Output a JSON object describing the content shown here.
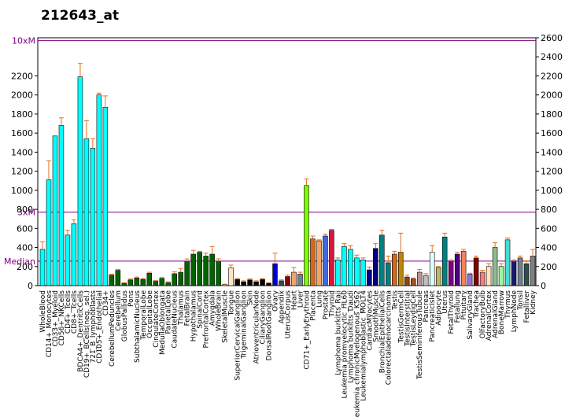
{
  "chart_data": {
    "type": "bar",
    "title": "212643_at",
    "xlabel": "",
    "ylabel": "",
    "ylim": [
      0,
      2600
    ],
    "left_ticks": [
      "0",
      "200",
      "400",
      "600",
      "800",
      "1000",
      "1200",
      "1400",
      "1600",
      "1800",
      "2000",
      "2200"
    ],
    "right_ticks": [
      "0",
      "200",
      "400",
      "600",
      "800",
      "1000",
      "1200",
      "1400",
      "1600",
      "1800",
      "2000",
      "2200",
      "2400",
      "2600"
    ],
    "reference_lines": [
      {
        "label": "10xM",
        "value": 2570,
        "color": "#800080"
      },
      {
        "label": "3xM",
        "value": 771,
        "color": "#800080"
      },
      {
        "label": "Median",
        "value": 257,
        "color": "#800080"
      }
    ],
    "categories": [
      "WholeBlood",
      "CD14+_Monocytes",
      "CD33+_Myeloid",
      "CD56+_NKCells",
      "CD4+_Tcells",
      "CD8+_Tcells",
      "BDCA4+_DentriticCells",
      "CD19+_BCells(neg._sel.)",
      "721_B_lymphoblasts",
      "CD105+_Endothelial",
      "CD34+",
      "CerebellumPeduncles",
      "Cerebellum",
      "GlobusPallidus",
      "Pons",
      "SubthalamicNucleus",
      "TemporalLobe",
      "OccipitalLobe",
      "CingulateCortex",
      "MedullaOblongata",
      "ParietalLobe",
      "CaudateNucleus",
      "Thalamus",
      "FetalBrain",
      "Hypothalamus",
      "SpinalCord",
      "PrefrontalCortex",
      "Amygdala",
      "WholeBrain",
      "SkeletalMuscle",
      "Tongue",
      "SuperiorCervicalGanglion",
      "TrigeminalGanglion",
      "Skin",
      "AtrioventricularNode",
      "CiliaryGanglion",
      "DorsalRootGanglion",
      "Ovary",
      "Appendix",
      "UterusCorpus",
      "Heart",
      "Liver",
      "CD71+_EarlyErythroid",
      "Placenta",
      "Lung",
      "Prostate",
      "Thyroid",
      "Lymphoma burkitts_Raji",
      "Leukemia promyelocytic_HL60",
      "Lymphoma burkitts_Daudi",
      "Leukemia chronicMyelogenous_K562",
      "Leukemialymphoblastic_MOLT4",
      "CardiacMyocytes",
      "SmoothMuscle",
      "BronchialEpithelialCells",
      "Colorectaladenocarcinoma",
      "Testis",
      "TestisGermCell",
      "TestisInterstitial",
      "TestisLeydigCell",
      "TestisSeminiferousTubule",
      "Pancreas",
      "PancreaticIslet",
      "Adipocyte",
      "Uterus",
      "FetalThyroid",
      "Fetallung",
      "Pituitary",
      "SalivaryGland",
      "Trachea",
      "OlfactoryBulb",
      "AdrenalCortex",
      "AdrenalGland",
      "BoneMarrow",
      "Thymus",
      "LymphNode",
      "Tonsil",
      "Fetalliver",
      "Kidney"
    ],
    "label_order": [
      "WholeBlood",
      "CD14+_Monocytes",
      "CD33+_Myeloid",
      "CD56+_NKCells",
      "CD4+_Tcells",
      "CD8+_Tcells",
      "BDCA4+_DentriticCells",
      "CD19+_BCells(neg._sel.)",
      "721_B_lymphoblasts",
      "CD105+_Endothelial",
      "CD34+",
      "CerebellumPeduncles",
      "Cerebellum",
      "GlobusPallidus",
      "Pons",
      "SubthalamicNucleus",
      "TemporalLobe",
      "OccipitalLobe",
      "CingulateCortex",
      "MedullaOblongata",
      "ParietalLobe",
      "CaudateNucleus",
      "Thalamus",
      "FetalBrain",
      "Hypothalamus",
      "SpinalCord",
      "PrefrontalCortex",
      "Amygdala",
      "WholeBrain",
      "SkeletalMuscle",
      "Tongue",
      "SuperiorCervicalGanglion",
      "TrigeminalGanglion",
      "Skin",
      "AtrioventricularNode",
      "CiliaryGanglion",
      "DorsalRootGanglion",
      "Ovary",
      "Appendix",
      "UterusCorpus",
      "Heart",
      "Liver",
      "CD71+_EarlyErythroid",
      "Placenta",
      "Lung",
      "Prostate",
      "Thyroid",
      "Lymphoma burkitts_Raji",
      "Leukemia promyelocytic_HL60",
      "Lymphoma burkitts_Daudi",
      "Leukemia chronicMyelogenous_K562",
      "Leukemialymphoblastic_MOLT4",
      "CardiacMyocytes",
      "SmoothMuscle",
      "BronchialEpithelialCells",
      "Colorectaladenocarcinoma",
      "Testis",
      "TestisGermCell",
      "TestisInterstitial",
      "TestisLeydigCell",
      "TestisSeminiferousTubule",
      "Pancreas",
      "PancreaticIslet",
      "Adipocyte",
      "Uterus",
      "FetalThyroid",
      "Fetallung",
      "Pituitary",
      "SalivaryGland",
      "Trachea",
      "OlfactoryBulb",
      "AdrenalCortex",
      "AdrenalGland",
      "BoneMarrow",
      "Thymus",
      "LymphNode",
      "Tonsil",
      "Fetalliver",
      "Kidney"
    ],
    "values": [
      380,
      1110,
      1570,
      1680,
      530,
      650,
      2190,
      1540,
      1440,
      2000,
      1870,
      110,
      160,
      25,
      60,
      80,
      65,
      130,
      45,
      75,
      30,
      125,
      140,
      250,
      330,
      350,
      310,
      330,
      250,
      10,
      185,
      65,
      40,
      60,
      40,
      65,
      25,
      230,
      50,
      95,
      140,
      120,
      1050,
      490,
      470,
      520,
      580,
      270,
      410,
      380,
      290,
      270,
      165,
      390,
      530,
      240,
      330,
      350,
      90,
      70,
      140,
      105,
      350,
      190,
      510,
      250,
      330,
      360,
      120,
      290,
      140,
      200,
      400,
      200,
      480,
      250,
      290,
      230,
      310
    ],
    "errors": [
      80,
      200,
      0,
      80,
      50,
      40,
      140,
      190,
      100,
      20,
      120,
      10,
      10,
      5,
      10,
      10,
      10,
      10,
      10,
      10,
      10,
      20,
      40,
      30,
      40,
      10,
      30,
      80,
      30,
      5,
      30,
      10,
      10,
      10,
      10,
      10,
      5,
      110,
      10,
      15,
      50,
      20,
      70,
      30,
      10,
      20,
      10,
      20,
      30,
      40,
      30,
      20,
      30,
      50,
      50,
      70,
      30,
      200,
      20,
      10,
      30,
      20,
      70,
      10,
      40,
      20,
      20,
      20,
      10,
      20,
      20,
      30,
      50,
      30,
      20,
      20,
      20,
      30,
      70
    ],
    "colors": [
      "#00FFFF",
      "#00FFFF",
      "#00FFFF",
      "#00FFFF",
      "#00FFFF",
      "#00FFFF",
      "#00FFFF",
      "#00FFFF",
      "#00FFFF",
      "#00FFFF",
      "#00FFFF",
      "#006400",
      "#006400",
      "#006400",
      "#006400",
      "#006400",
      "#006400",
      "#006400",
      "#006400",
      "#006400",
      "#006400",
      "#006400",
      "#006400",
      "#006400",
      "#006400",
      "#006400",
      "#006400",
      "#006400",
      "#006400",
      "#FFF5E0",
      "#FFE4C4",
      "#000000",
      "#000000",
      "#000000",
      "#000000",
      "#000000",
      "#000000",
      "#0000CD",
      "#2F4F4F",
      "#8B0000",
      "#F4A460",
      "#708090",
      "#7CFC00",
      "#D2691E",
      "#F4A460",
      "#4169E1",
      "#DC143C",
      "#00FFFF",
      "#00FFFF",
      "#00FFFF",
      "#00FFFF",
      "#00FFFF",
      "#00008B",
      "#000080",
      "#008080",
      "#008080",
      "#D2691E",
      "#B8860B",
      "#8B4513",
      "#A0522D",
      "#BC8F8F",
      "#C0C0C0",
      "#E0FFFF",
      "#BDB76B",
      "#008080",
      "#800080",
      "#4B0082",
      "#FF7F50",
      "#9370DB",
      "#800000",
      "#F08080",
      "#FFE4C4",
      "#8FBC8F",
      "#98FB98",
      "#40E0D0",
      "#191970",
      "#708090",
      "#2F4F4F",
      "#808080"
    ]
  }
}
